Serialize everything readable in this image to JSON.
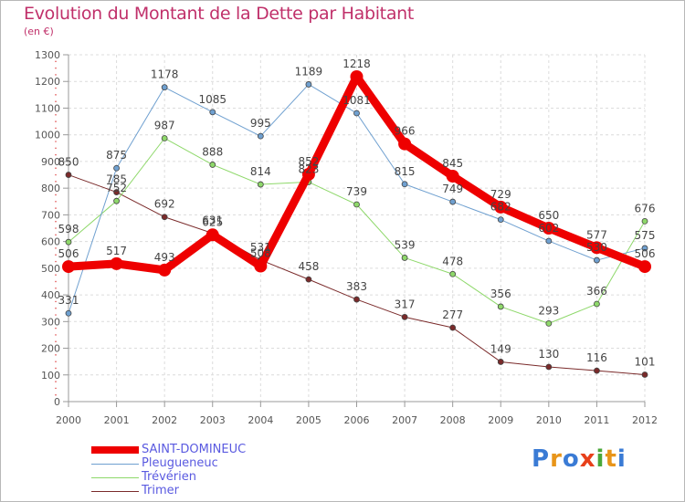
{
  "title": "Evolution du Montant de la Dette par Habitant",
  "subtitle": "(en €)",
  "logo": {
    "text": "Proxiti",
    "colors": [
      "#3a7bd5",
      "#e8951a",
      "#3a7bd5",
      "#e8401a",
      "#4aa83a",
      "#e8951a",
      "#3a7bd5"
    ]
  },
  "chart_data": {
    "type": "line",
    "title": "Evolution du Montant de la Dette par Habitant",
    "ylabel": "(en €)",
    "x": [
      "2000",
      "2001",
      "2002",
      "2003",
      "2004",
      "2005",
      "2006",
      "2007",
      "2008",
      "2009",
      "2010",
      "2011",
      "2012"
    ],
    "ylim": [
      0,
      1300
    ],
    "yticks": [
      0,
      100,
      200,
      300,
      400,
      500,
      600,
      700,
      800,
      900,
      1000,
      1100,
      1200,
      1300
    ],
    "grid": true,
    "legend_position": "bottom-left",
    "series": [
      {
        "name": "Trimer",
        "color": "#7a2a2a",
        "width": 1,
        "values": [
          850,
          785,
          692,
          631,
          531,
          458,
          383,
          317,
          277,
          149,
          130,
          116,
          101
        ]
      },
      {
        "name": "Trévérien",
        "color": "#8ed86a",
        "width": 1,
        "values": [
          598,
          752,
          987,
          888,
          814,
          823,
          739,
          539,
          478,
          356,
          293,
          366,
          676
        ]
      },
      {
        "name": "Pleugueneuc",
        "color": "#6fa0d0",
        "width": 1,
        "values": [
          331,
          875,
          1178,
          1085,
          995,
          1189,
          1081,
          815,
          749,
          682,
          602,
          530,
          575
        ]
      },
      {
        "name": "SAINT-DOMINEUC",
        "color": "#ee0000",
        "width": 9,
        "values": [
          506,
          517,
          493,
          625,
          508,
          852,
          1218,
          966,
          845,
          729,
          650,
          577,
          506
        ]
      }
    ],
    "legend_order": [
      "SAINT-DOMINEUC",
      "Pleugueneuc",
      "Trévérien",
      "Trimer"
    ]
  }
}
